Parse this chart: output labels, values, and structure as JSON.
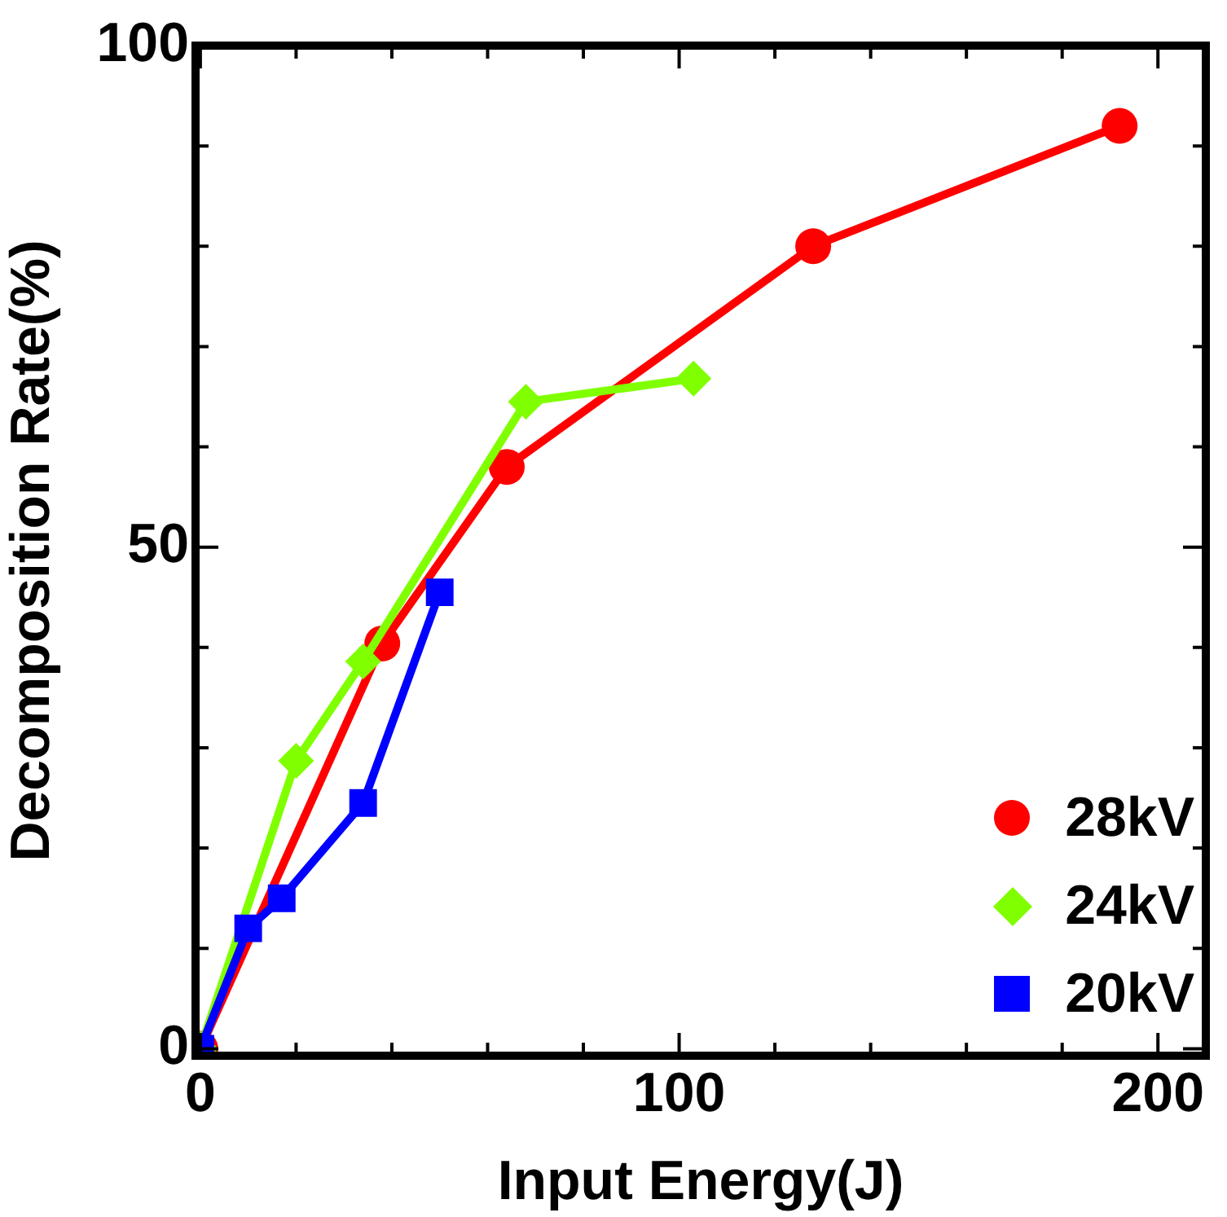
{
  "chart_data": {
    "type": "line",
    "xlabel": "Input Energy(J)",
    "ylabel": "Decomposition Rate(%)",
    "xlim": [
      -1,
      210
    ],
    "ylim": [
      -0.7,
      100
    ],
    "xticks": [
      0,
      {
        "value": 20,
        "label": null
      },
      {
        "value": 40,
        "label": null
      },
      {
        "value": 60,
        "label": null
      },
      {
        "value": 80,
        "label": null
      },
      100,
      {
        "value": 120,
        "label": null
      },
      {
        "value": 140,
        "label": null
      },
      {
        "value": 160,
        "label": null
      },
      {
        "value": 180,
        "label": null
      },
      200
    ],
    "yticks": [
      0,
      {
        "value": 10,
        "label": null
      },
      {
        "value": 20,
        "label": null
      },
      {
        "value": 30,
        "label": null
      },
      {
        "value": 40,
        "label": null
      },
      50,
      {
        "value": 60,
        "label": null
      },
      {
        "value": 70,
        "label": null
      },
      {
        "value": 80,
        "label": null
      },
      {
        "value": 90,
        "label": null
      },
      100
    ],
    "grid": false,
    "legend": "bottom right",
    "line_style": "solid",
    "series": [
      {
        "name": "28kV",
        "color": "#ff0000",
        "marker": "circle",
        "x": [
          0,
          38,
          64,
          128,
          192
        ],
        "values": [
          0,
          40.4,
          58,
          80,
          92
        ]
      },
      {
        "name": "24kV",
        "color": "#80ff00",
        "marker": "diamond",
        "x": [
          0,
          20,
          34,
          68,
          103
        ],
        "values": [
          0,
          28.7,
          38.6,
          64.5,
          66.8
        ]
      },
      {
        "name": "20kV",
        "color": "#0000ff",
        "marker": "square",
        "x": [
          0,
          10,
          17,
          34,
          50
        ],
        "values": [
          0,
          12,
          15,
          24.5,
          45.5
        ]
      }
    ]
  }
}
